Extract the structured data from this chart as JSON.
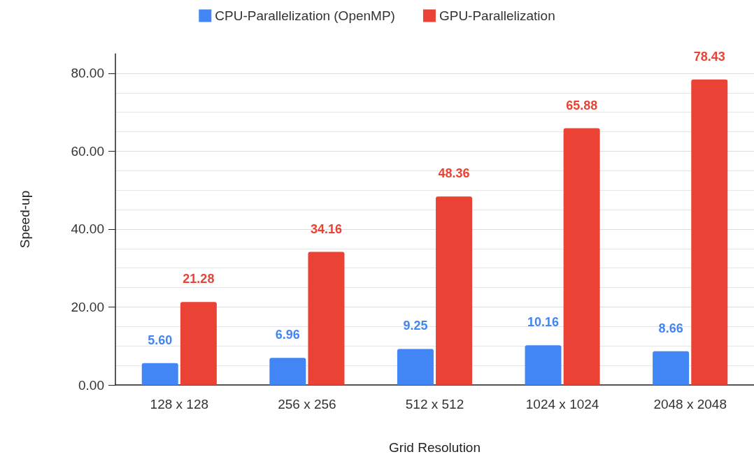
{
  "chart_data": {
    "type": "bar",
    "xlabel": "Grid Resolution",
    "ylabel": "Speed-up",
    "categories": [
      "128 x 128",
      "256 x 256",
      "512 x 512",
      "1024 x 1024",
      "2048 x 2048"
    ],
    "series": [
      {
        "name": "CPU-Parallelization (OpenMP)",
        "color": "#4285f4",
        "values": [
          5.6,
          6.96,
          9.25,
          10.16,
          8.66
        ],
        "value_labels": [
          "5.60",
          "6.96",
          "9.25",
          "10.16",
          "8.66"
        ]
      },
      {
        "name": "GPU-Parallelization",
        "color": "#ea4335",
        "values": [
          21.28,
          34.16,
          48.36,
          65.88,
          78.43
        ],
        "value_labels": [
          "21.28",
          "34.16",
          "48.36",
          "65.88",
          "78.43"
        ]
      }
    ],
    "ylim": [
      0,
      85
    ],
    "yticks": [
      {
        "value": 0,
        "label": "0.00"
      },
      {
        "value": 20,
        "label": "20.00"
      },
      {
        "value": 40,
        "label": "40.00"
      },
      {
        "value": 60,
        "label": "60.00"
      },
      {
        "value": 80,
        "label": "80.00"
      }
    ],
    "grid": true,
    "legend": "top"
  }
}
